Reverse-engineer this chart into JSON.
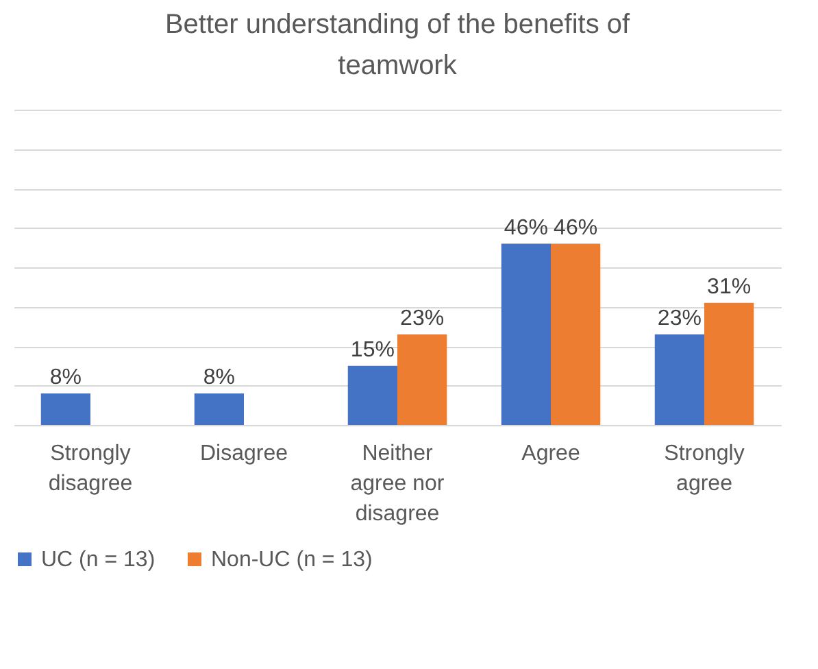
{
  "chart_data": {
    "type": "bar",
    "title": "Better understanding of the benefits of teamwork",
    "categories": [
      "Strongly disagree",
      "Disagree",
      "Neither agree nor disagree",
      "Agree",
      "Strongly agree"
    ],
    "series": [
      {
        "name": "UC (n = 13)",
        "color": "#4472c4",
        "values": [
          8,
          8,
          15,
          46,
          23
        ],
        "value_labels": [
          "8%",
          "8%",
          "15%",
          "46%",
          "23%"
        ]
      },
      {
        "name": "Non-UC (n = 13)",
        "color": "#ed7d31",
        "values": [
          null,
          null,
          23,
          46,
          31
        ],
        "value_labels": [
          null,
          null,
          "23%",
          "46%",
          "31%"
        ]
      }
    ],
    "ylim": [
      0,
      80
    ],
    "yticks": [
      {
        "value": 0,
        "label": null
      },
      {
        "value": 10,
        "label": null
      },
      {
        "value": 20,
        "label": null
      },
      {
        "value": 30,
        "label": null
      },
      {
        "value": 40,
        "label": null
      },
      {
        "value": 50,
        "label": null
      },
      {
        "value": 60,
        "label": null
      },
      {
        "value": 70,
        "label": null
      },
      {
        "value": 80,
        "label": null
      }
    ],
    "grid": "y",
    "legend": "bottom"
  }
}
